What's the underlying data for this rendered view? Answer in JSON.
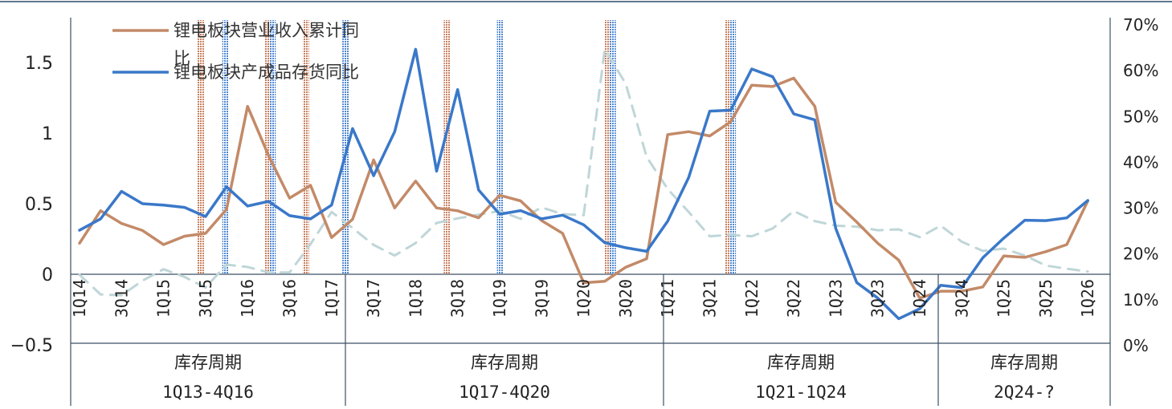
{
  "colors": {
    "top_border": "#2e4a6b",
    "axis": "#3d4f63",
    "revenue": "#c38a68",
    "inventory": "#3a78c9",
    "dashed": "#bfd6d8",
    "hatch_revenue": "#c9805f",
    "hatch_inventory": "#4f87d0"
  },
  "chart_data": {
    "type": "line",
    "y_left": {
      "ticks": [
        "1.5",
        "1",
        "0.5",
        "0",
        "−0.5"
      ],
      "values": [
        1.5,
        1,
        0.5,
        0,
        -0.5
      ],
      "range": [
        -0.5,
        1.75
      ]
    },
    "y_right": {
      "ticks": [
        "70%",
        "60%",
        "50%",
        "40%",
        "30%",
        "20%",
        "10%",
        "0%"
      ],
      "values": [
        70,
        60,
        50,
        40,
        30,
        20,
        10,
        0
      ],
      "range": [
        0,
        70
      ]
    },
    "x_tick_labels": [
      "1Q14",
      "3Q14",
      "1Q15",
      "3Q15",
      "1Q16",
      "3Q16",
      "1Q17",
      "3Q17",
      "1Q18",
      "3Q18",
      "1Q19",
      "3Q19",
      "1Q20",
      "3Q20",
      "1Q21",
      "3Q21",
      "1Q22",
      "3Q22",
      "1Q23",
      "3Q23",
      "1Q24",
      "3Q24",
      "1Q25",
      "3Q25",
      "1Q26"
    ],
    "x_tick_index": [
      0,
      2,
      4,
      6,
      8,
      10,
      12,
      14,
      16,
      18,
      20,
      22,
      24,
      26,
      28,
      30,
      32,
      34,
      36,
      38,
      40,
      42,
      44,
      46,
      48
    ],
    "n_points": 49,
    "series": [
      {
        "name": "锂电板块营业收入累计同比",
        "axis": "left",
        "color_key": "revenue",
        "values": [
          0.22,
          0.45,
          0.36,
          0.31,
          0.21,
          0.27,
          0.29,
          0.46,
          1.19,
          0.84,
          0.54,
          0.63,
          0.26,
          0.39,
          0.81,
          0.47,
          0.66,
          0.47,
          0.45,
          0.4,
          0.56,
          0.52,
          0.38,
          0.29,
          -0.06,
          -0.05,
          0.05,
          0.11,
          0.99,
          1.01,
          0.98,
          1.08,
          1.34,
          1.33,
          1.39,
          1.19,
          0.51,
          0.37,
          0.22,
          0.1,
          -0.17,
          -0.12,
          -0.12,
          -0.09,
          0.13,
          0.12,
          0.16,
          0.21,
          0.52
        ]
      },
      {
        "name": "锂电板块产成品存货同比",
        "axis": "right",
        "color_key": "inventory",
        "values": [
          25,
          27.5,
          33.5,
          30.8,
          30.5,
          30,
          28,
          34.5,
          30.3,
          31.3,
          28.2,
          27.5,
          30.5,
          47.2,
          36.9,
          46.5,
          64.5,
          37.9,
          55.7,
          33.8,
          28.5,
          29.3,
          27.5,
          28.3,
          26.2,
          22.3,
          21.2,
          20.4,
          27,
          36.5,
          51,
          51.2,
          60.2,
          58.5,
          50.4,
          49.1,
          25.4,
          13.6,
          10.2,
          5.7,
          7.9,
          13,
          12.5,
          19,
          23.3,
          27.2,
          27.1,
          27.7,
          31.5
        ]
      },
      {
        "name": "",
        "axis": "right",
        "color_key": "dashed",
        "dashed": true,
        "values": [
          15.3,
          11,
          10.8,
          14,
          16.5,
          14.8,
          12.5,
          17.5,
          17,
          15.8,
          15.8,
          22,
          29,
          25.5,
          21.8,
          19.5,
          22.2,
          26.6,
          27.6,
          28.4,
          29.2,
          27.5,
          30,
          28.5,
          28.3,
          64.5,
          57,
          41,
          34,
          29,
          23.7,
          24,
          23.7,
          25.4,
          29.2,
          27,
          26,
          25.8,
          25,
          25.2,
          23.5,
          26,
          22.5,
          20.5,
          21,
          19.5,
          17.3,
          16.6,
          16
        ]
      }
    ],
    "markers": [
      {
        "pos": 9.8,
        "type": "revenue"
      },
      {
        "pos": 11.8,
        "type": "inventory"
      },
      {
        "pos": 15.2,
        "type": "revenue"
      },
      {
        "pos": 15.6,
        "type": "inventory"
      },
      {
        "pos": 18.3,
        "type": "revenue"
      },
      {
        "pos": 21.5,
        "type": "inventory"
      },
      {
        "pos": 29.7,
        "type": "revenue"
      },
      {
        "pos": 34.0,
        "type": "inventory"
      },
      {
        "pos": 42.7,
        "type": "revenue"
      },
      {
        "pos": 43.1,
        "type": "inventory"
      },
      {
        "pos": 52.4,
        "type": "revenue"
      },
      {
        "pos": 52.8,
        "type": "inventory"
      }
    ],
    "periods": [
      {
        "label": "库存周期",
        "range": "1Q13-4Q16"
      },
      {
        "label": "库存周期",
        "range": "1Q17-4Q20"
      },
      {
        "label": "库存周期",
        "range": "1Q21-1Q24"
      },
      {
        "label": "库存周期",
        "range": "2Q24-?"
      }
    ],
    "legend_position": "top-left",
    "legend": [
      {
        "text_line1": "锂电板块营业收入累计同",
        "text_line2": "比",
        "color_key": "revenue"
      },
      {
        "text_line1": "锂电板块产成品存货同比",
        "color_key": "inventory"
      }
    ]
  }
}
